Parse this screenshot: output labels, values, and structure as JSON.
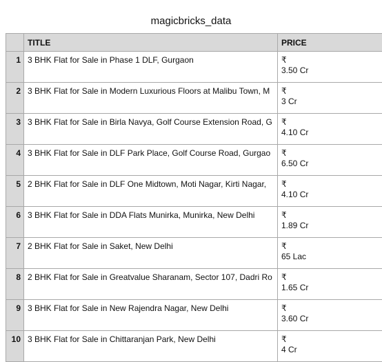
{
  "sheet": {
    "title": "magicbricks_data"
  },
  "columns": [
    "TITLE",
    "PRICE"
  ],
  "rows": [
    {
      "num": "1",
      "title": "3 BHK Flat for Sale in Phase 1 DLF, Gurgaon",
      "currency": "₹",
      "price": "3.50 Cr"
    },
    {
      "num": "2",
      "title": "3 BHK Flat for Sale in Modern Luxurious Floors at Malibu Town, M",
      "currency": "₹",
      "price": "3 Cr"
    },
    {
      "num": "3",
      "title": "3 BHK Flat for Sale in Birla Navya, Golf Course Extension Road, G",
      "currency": "₹",
      "price": "4.10 Cr"
    },
    {
      "num": "4",
      "title": "3 BHK Flat for Sale in DLF Park Place, Golf Course Road, Gurgao",
      "currency": "₹",
      "price": "6.50 Cr"
    },
    {
      "num": "5",
      "title": "2 BHK Flat for Sale in DLF One Midtown, Moti Nagar, Kirti Nagar,",
      "currency": "₹",
      "price": "4.10 Cr"
    },
    {
      "num": "6",
      "title": "3 BHK Flat for Sale in DDA Flats Munirka, Munirka, New Delhi",
      "currency": "₹",
      "price": "1.89 Cr"
    },
    {
      "num": "7",
      "title": "2 BHK Flat for Sale in Saket, New Delhi",
      "currency": "₹",
      "price": "65 Lac"
    },
    {
      "num": "8",
      "title": "2 BHK Flat for Sale in Greatvalue Sharanam, Sector 107, Dadri Ro",
      "currency": "₹",
      "price": "1.65 Cr"
    },
    {
      "num": "9",
      "title": "3 BHK Flat for Sale in New Rajendra Nagar, New Delhi",
      "currency": "₹",
      "price": "3.60 Cr"
    },
    {
      "num": "10",
      "title": "3 BHK Flat for Sale in Chittaranjan Park, New Delhi",
      "currency": "₹",
      "price": "4 Cr"
    }
  ]
}
